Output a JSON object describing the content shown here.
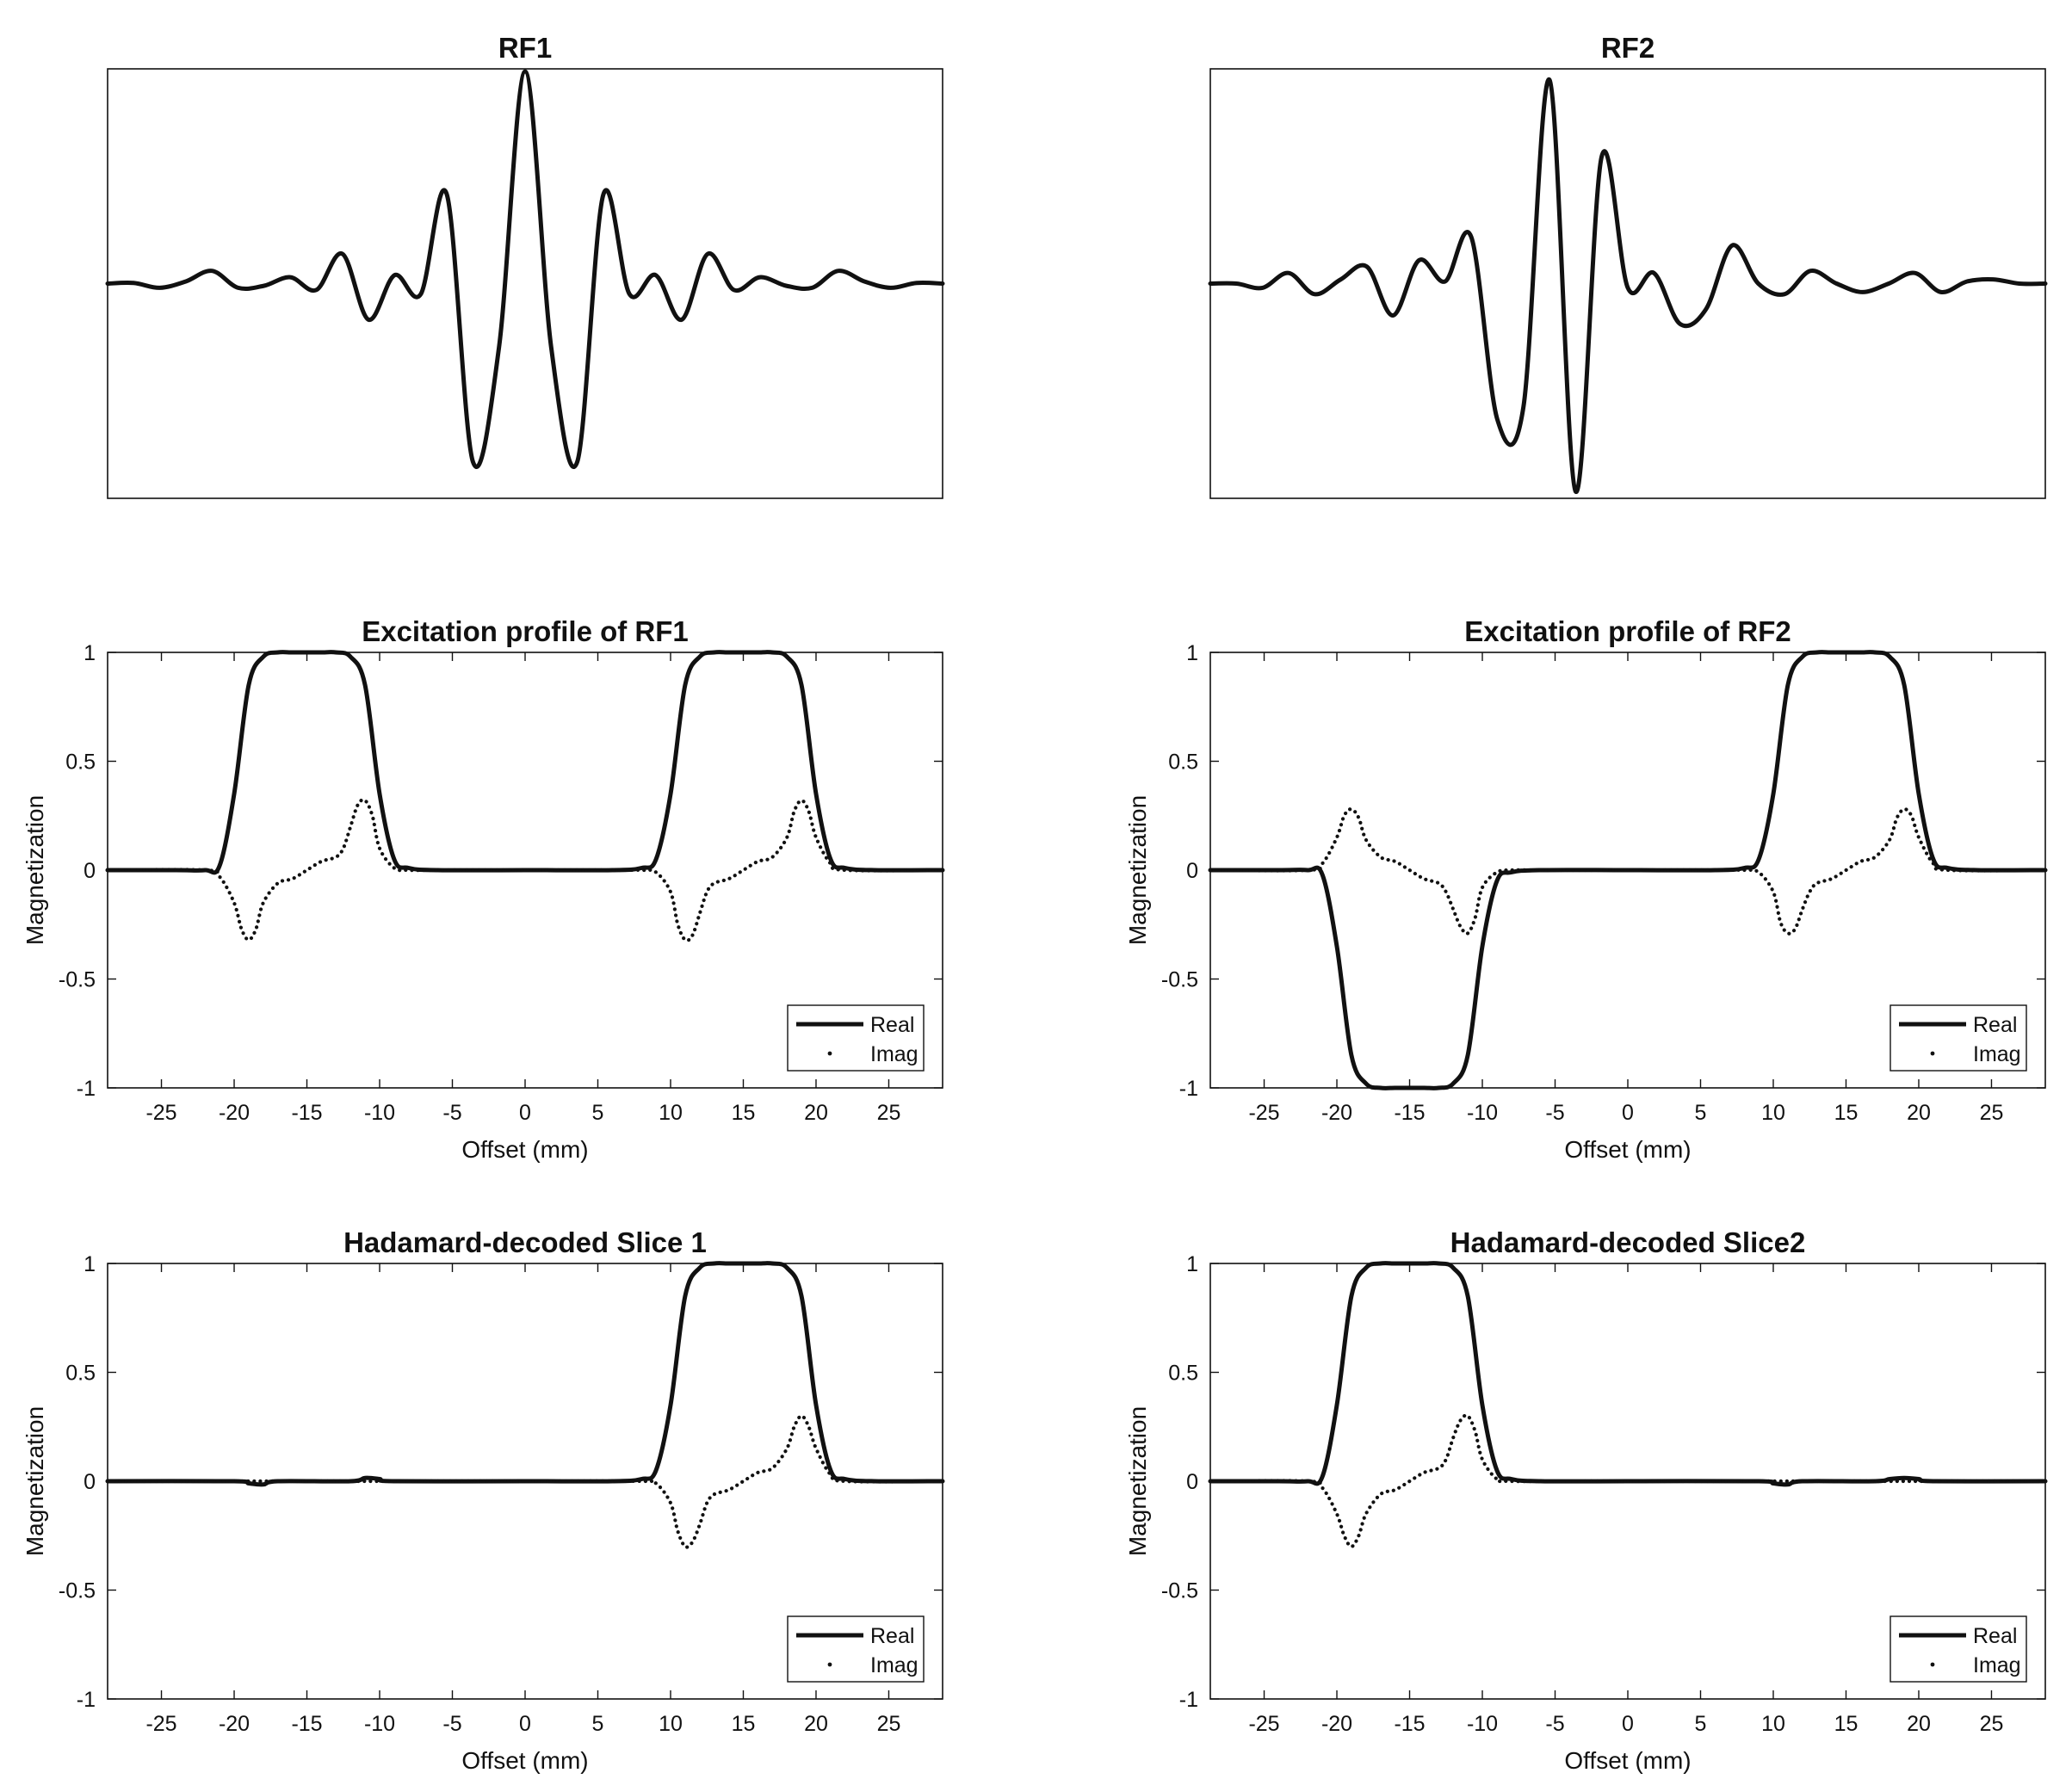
{
  "figure": {
    "background": "#ffffff",
    "line_color": "#111111"
  },
  "chart_data": [
    {
      "id": "rf1",
      "type": "line",
      "title": "RF1",
      "xlabel": "",
      "ylabel": "",
      "xticks": [],
      "yticks": [],
      "series": [
        {
          "style": "solid",
          "x": [
            -8.0,
            -7.5,
            -7.0,
            -6.5,
            -6.0,
            -5.5,
            -5.0,
            -4.5,
            -4.0,
            -3.5,
            -3.0,
            -2.5,
            -2.0,
            -1.5,
            -1.0,
            -0.5,
            0.0,
            0.5,
            1.0,
            1.5,
            2.0,
            2.5,
            3.0,
            3.5,
            4.0,
            4.5,
            5.0,
            5.5,
            6.0,
            6.5,
            7.0,
            7.5,
            8.0
          ],
          "y": [
            0.0,
            0.003,
            -0.02,
            0.01,
            0.06,
            -0.02,
            -0.01,
            0.03,
            -0.03,
            0.14,
            -0.17,
            0.04,
            -0.05,
            0.42,
            -0.84,
            -0.3,
            1.0,
            -0.3,
            -0.84,
            0.42,
            -0.05,
            0.04,
            -0.17,
            0.14,
            -0.03,
            0.03,
            -0.01,
            -0.02,
            0.06,
            0.01,
            -0.02,
            0.003,
            0.0
          ]
        }
      ]
    },
    {
      "id": "rf2",
      "type": "line",
      "title": "RF2",
      "xlabel": "",
      "ylabel": "",
      "xticks": [],
      "yticks": [],
      "series": [
        {
          "style": "solid",
          "x": [
            -8.0,
            -7.5,
            -7.0,
            -6.5,
            -6.0,
            -5.5,
            -5.0,
            -4.5,
            -4.0,
            -3.5,
            -3.0,
            -2.5,
            -2.0,
            -1.5,
            -1.0,
            -0.5,
            0.0,
            0.5,
            1.0,
            1.5,
            2.0,
            2.5,
            3.0,
            3.5,
            4.0,
            4.5,
            5.0,
            5.5,
            6.0,
            6.5,
            7.0,
            7.5,
            8.0
          ],
          "y": [
            0.0,
            0.0,
            -0.02,
            0.05,
            -0.05,
            0.02,
            0.08,
            -0.15,
            0.11,
            0.01,
            0.22,
            -0.64,
            -0.58,
            0.96,
            -0.98,
            0.6,
            -0.02,
            0.05,
            -0.19,
            -0.12,
            0.18,
            0.0,
            -0.05,
            0.06,
            0.0,
            -0.04,
            0.0,
            0.05,
            -0.04,
            0.01,
            0.02,
            0.0,
            0.0
          ]
        }
      ]
    },
    {
      "id": "exc1",
      "type": "line",
      "title": "Excitation profile of RF1",
      "xlabel": "Offset (mm)",
      "ylabel": "Magnetization",
      "xlim": [
        -28.7,
        28.7
      ],
      "ylim": [
        -1,
        1
      ],
      "xticks": [
        "-25",
        "-20",
        "-15",
        "-10",
        "-5",
        "0",
        "5",
        "10",
        "15",
        "20",
        "25"
      ],
      "yticks": [
        "1",
        "0.5",
        "0",
        "-0.5",
        "-1"
      ],
      "legend": {
        "position": "bottom-right",
        "entries": [
          "Real",
          "Imag"
        ]
      },
      "series": [
        {
          "name": "Real",
          "style": "solid",
          "x": [
            -28.7,
            -24,
            -22,
            -21,
            -20,
            -19,
            -18,
            -17,
            -16,
            -15,
            -14,
            -13,
            -12,
            -11,
            -10,
            -9,
            -8,
            -6,
            0,
            6,
            8,
            9,
            10,
            11,
            12,
            13,
            14,
            15,
            16,
            17,
            18,
            19,
            20,
            21,
            22,
            24,
            28.7
          ],
          "y": [
            0,
            0,
            0,
            0.02,
            0.35,
            0.85,
            0.98,
            1,
            1,
            1,
            1,
            1,
            0.98,
            0.85,
            0.35,
            0.05,
            0.01,
            0,
            0,
            0,
            0.01,
            0.05,
            0.35,
            0.85,
            0.98,
            1,
            1,
            1,
            1,
            1,
            0.98,
            0.85,
            0.35,
            0.05,
            0.01,
            0,
            0
          ]
        },
        {
          "name": "Imag",
          "style": "dotted",
          "x": [
            -28.7,
            -22,
            -21,
            -20,
            -19.5,
            -19,
            -18.5,
            -18,
            -17,
            -16,
            -15,
            -14,
            -13,
            -12.5,
            -12,
            -11.5,
            -11,
            -10.5,
            -10,
            -9,
            -8,
            -6,
            0,
            6,
            8,
            9,
            10,
            10.5,
            11,
            11.5,
            12,
            12.5,
            13,
            14,
            15,
            16,
            17,
            18,
            18.5,
            19,
            19.5,
            20,
            21,
            22,
            28.7
          ],
          "y": [
            0,
            0,
            -0.03,
            -0.15,
            -0.27,
            -0.32,
            -0.27,
            -0.15,
            -0.06,
            -0.04,
            0.0,
            0.04,
            0.06,
            0.1,
            0.2,
            0.3,
            0.32,
            0.25,
            0.1,
            0.01,
            0,
            0,
            0,
            0,
            0,
            -0.01,
            -0.1,
            -0.25,
            -0.32,
            -0.3,
            -0.2,
            -0.1,
            -0.06,
            -0.04,
            0.0,
            0.04,
            0.06,
            0.15,
            0.27,
            0.32,
            0.27,
            0.15,
            0.03,
            0,
            0
          ]
        }
      ]
    },
    {
      "id": "exc2",
      "type": "line",
      "title": "Excitation profile of RF2",
      "xlabel": "Offset (mm)",
      "ylabel": "Magnetization",
      "xlim": [
        -28.7,
        28.7
      ],
      "ylim": [
        -1,
        1
      ],
      "xticks": [
        "-25",
        "-20",
        "-15",
        "-10",
        "-5",
        "0",
        "5",
        "10",
        "15",
        "20",
        "25"
      ],
      "yticks": [
        "1",
        "0.5",
        "0",
        "-0.5",
        "-1"
      ],
      "legend": {
        "position": "bottom-right",
        "entries": [
          "Real",
          "Imag"
        ]
      },
      "series": [
        {
          "name": "Real",
          "style": "solid",
          "x": [
            -28.7,
            -24,
            -22,
            -21,
            -20,
            -19,
            -18,
            -17,
            -16,
            -15,
            -14,
            -13,
            -12,
            -11,
            -10,
            -9,
            -8,
            -6,
            0,
            6,
            8,
            9,
            10,
            11,
            12,
            13,
            14,
            15,
            16,
            17,
            18,
            19,
            20,
            21,
            22,
            24,
            28.7
          ],
          "y": [
            0,
            0,
            0,
            -0.02,
            -0.35,
            -0.85,
            -0.98,
            -1,
            -1,
            -1,
            -1,
            -1,
            -0.98,
            -0.85,
            -0.35,
            -0.05,
            -0.01,
            0,
            0,
            0,
            0.01,
            0.05,
            0.35,
            0.85,
            0.98,
            1,
            1,
            1,
            1,
            1,
            0.98,
            0.85,
            0.35,
            0.05,
            0.01,
            0,
            0
          ]
        },
        {
          "name": "Imag",
          "style": "dotted",
          "x": [
            -28.7,
            -22,
            -21,
            -20,
            -19.5,
            -19,
            -18.5,
            -18,
            -17,
            -16,
            -15,
            -14,
            -13,
            -12.5,
            -12,
            -11.5,
            -11,
            -10.5,
            -10,
            -9,
            -8,
            -6,
            0,
            6,
            8,
            9,
            10,
            10.5,
            11,
            11.5,
            12,
            12.5,
            13,
            14,
            15,
            16,
            17,
            18,
            18.5,
            19,
            19.5,
            20,
            21,
            22,
            28.7
          ],
          "y": [
            0,
            0,
            0.03,
            0.15,
            0.25,
            0.28,
            0.24,
            0.14,
            0.06,
            0.04,
            0.0,
            -0.04,
            -0.06,
            -0.1,
            -0.18,
            -0.26,
            -0.29,
            -0.22,
            -0.08,
            -0.01,
            0,
            0,
            0,
            0,
            0,
            -0.01,
            -0.1,
            -0.24,
            -0.29,
            -0.27,
            -0.18,
            -0.1,
            -0.06,
            -0.04,
            0.0,
            0.04,
            0.06,
            0.14,
            0.24,
            0.28,
            0.25,
            0.15,
            0.03,
            0,
            0
          ]
        }
      ]
    },
    {
      "id": "had1",
      "type": "line",
      "title": "Hadamard-decoded Slice 1",
      "xlabel": "Offset (mm)",
      "ylabel": "Magnetization",
      "xlim": [
        -28.7,
        28.7
      ],
      "ylim": [
        -1,
        1
      ],
      "xticks": [
        "-25",
        "-20",
        "-15",
        "-10",
        "-5",
        "0",
        "5",
        "10",
        "15",
        "20",
        "25"
      ],
      "yticks": [
        "1",
        "0.5",
        "0",
        "-0.5",
        "-1"
      ],
      "legend": {
        "position": "bottom-right",
        "entries": [
          "Real",
          "Imag"
        ]
      },
      "series": [
        {
          "name": "Real",
          "style": "solid",
          "x": [
            -28.7,
            -20,
            -19,
            -18,
            -17,
            -12,
            -11,
            -10,
            -9,
            0,
            6,
            8,
            9,
            10,
            11,
            12,
            13,
            14,
            15,
            16,
            17,
            18,
            19,
            20,
            21,
            22,
            24,
            28.7
          ],
          "y": [
            0,
            0,
            -0.01,
            -0.015,
            0,
            0,
            0.015,
            0.01,
            0,
            0,
            0,
            0.01,
            0.05,
            0.35,
            0.85,
            0.98,
            1,
            1,
            1,
            1,
            1,
            0.98,
            0.85,
            0.35,
            0.05,
            0.01,
            0,
            0
          ]
        },
        {
          "name": "Imag",
          "style": "dotted",
          "x": [
            -28.7,
            0,
            8,
            9,
            10,
            10.5,
            11,
            11.5,
            12,
            12.5,
            13,
            14,
            15,
            16,
            17,
            18,
            18.5,
            19,
            19.5,
            20,
            21,
            22,
            28.7
          ],
          "y": [
            0,
            0,
            0,
            -0.01,
            -0.1,
            -0.23,
            -0.3,
            -0.28,
            -0.2,
            -0.1,
            -0.06,
            -0.04,
            0.0,
            0.04,
            0.06,
            0.15,
            0.25,
            0.3,
            0.25,
            0.15,
            0.03,
            0,
            0
          ]
        }
      ]
    },
    {
      "id": "had2",
      "type": "line",
      "title": "Hadamard-decoded Slice2",
      "xlabel": "Offset (mm)",
      "ylabel": "Magnetization",
      "xlim": [
        -28.7,
        28.7
      ],
      "ylim": [
        -1,
        1
      ],
      "xticks": [
        "-25",
        "-20",
        "-15",
        "-10",
        "-5",
        "0",
        "5",
        "10",
        "15",
        "20",
        "25"
      ],
      "yticks": [
        "1",
        "0.5",
        "0",
        "-0.5",
        "-1"
      ],
      "legend": {
        "position": "bottom-right",
        "entries": [
          "Real",
          "Imag"
        ]
      },
      "series": [
        {
          "name": "Real",
          "style": "solid",
          "x": [
            -28.7,
            -24,
            -22,
            -21,
            -20,
            -19,
            -18,
            -17,
            -16,
            -15,
            -14,
            -13,
            -12,
            -11,
            -10,
            -9,
            -8,
            -6,
            0,
            9,
            10,
            11,
            12,
            17,
            18,
            19,
            20,
            21,
            28.7
          ],
          "y": [
            0,
            0,
            0,
            0.02,
            0.35,
            0.85,
            0.98,
            1,
            1,
            1,
            1,
            1,
            0.98,
            0.85,
            0.35,
            0.05,
            0.01,
            0,
            0,
            0,
            -0.01,
            -0.015,
            0,
            0,
            0.01,
            0.015,
            0.01,
            0,
            0
          ]
        },
        {
          "name": "Imag",
          "style": "dotted",
          "x": [
            -28.7,
            -22,
            -21,
            -20,
            -19.5,
            -19,
            -18.5,
            -18,
            -17,
            -16,
            -15,
            -14,
            -13,
            -12.5,
            -12,
            -11.5,
            -11,
            -10.5,
            -10,
            -9,
            -8,
            0,
            28.7
          ],
          "y": [
            0,
            0,
            -0.03,
            -0.15,
            -0.25,
            -0.3,
            -0.25,
            -0.15,
            -0.06,
            -0.04,
            0.0,
            0.04,
            0.06,
            0.1,
            0.2,
            0.28,
            0.3,
            0.23,
            0.1,
            0.01,
            0,
            0,
            0
          ]
        }
      ]
    }
  ]
}
